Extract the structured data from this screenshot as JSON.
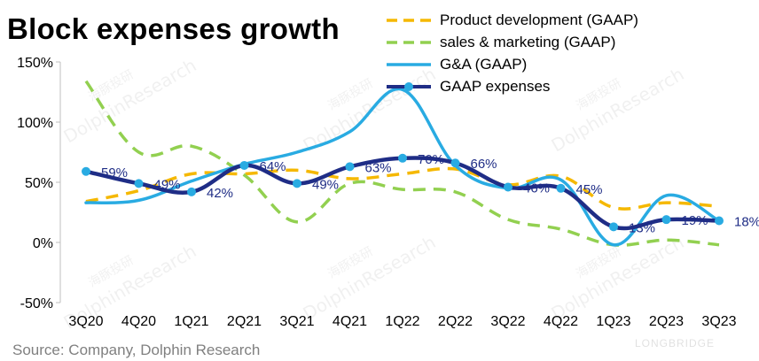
{
  "title": "Block expenses growth",
  "source": "Source: Company, Dolphin Research",
  "watermark": {
    "brand": "DolphinResearch",
    "cjk": "海豚投研",
    "corner": "LONGBRIDGE"
  },
  "chart_data": {
    "type": "line",
    "categories": [
      "3Q20",
      "4Q20",
      "1Q21",
      "2Q21",
      "3Q21",
      "4Q21",
      "1Q22",
      "2Q22",
      "3Q22",
      "4Q22",
      "1Q23",
      "2Q23",
      "3Q23"
    ],
    "ylim": [
      -50,
      150
    ],
    "yticks": [
      -50,
      0,
      50,
      100,
      150
    ],
    "ytick_labels": [
      "-50%",
      "0%",
      "50%",
      "100%",
      "150%"
    ],
    "grid": false,
    "legend_position": "top-right",
    "series": [
      {
        "name": "Product development (GAAP)",
        "color": "#F5B800",
        "style": "dashed",
        "values": [
          34,
          43,
          57,
          57,
          60,
          53,
          57,
          61,
          48,
          55,
          29,
          33,
          30
        ]
      },
      {
        "name": "sales & marketing (GAAP)",
        "color": "#92D050",
        "style": "dashed",
        "values": [
          134,
          75,
          80,
          56,
          17,
          49,
          44,
          42,
          19,
          11,
          -2,
          2,
          -2
        ]
      },
      {
        "name": "G&A (GAAP)",
        "color": "#29ABE2",
        "style": "solid",
        "values": [
          33,
          35,
          51,
          65,
          75,
          92,
          127,
          64,
          45,
          52,
          -2,
          39,
          18
        ]
      },
      {
        "name": "GAAP expenses",
        "color": "#1F2D86",
        "style": "solid-markers",
        "values": [
          59,
          49,
          42,
          64,
          49,
          63,
          70,
          66,
          46,
          45,
          13,
          19,
          18
        ],
        "labels": [
          "59%",
          "49%",
          "42%",
          "64%",
          "49%",
          "63%",
          "70%",
          "66%",
          "46%",
          "45%",
          "13%",
          "19%",
          "18%"
        ]
      }
    ]
  }
}
